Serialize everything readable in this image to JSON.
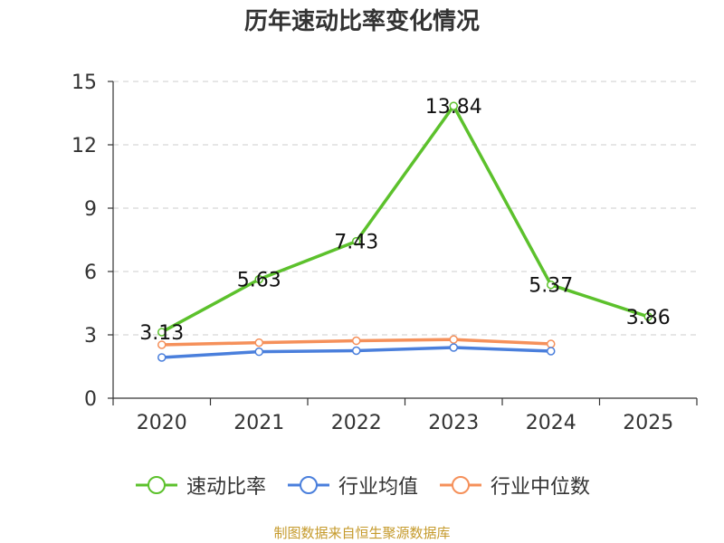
{
  "chart_data": {
    "type": "line",
    "title": "历年速动比率变化情况",
    "categories": [
      "2020",
      "2021",
      "2022",
      "2023",
      "2024",
      "2025"
    ],
    "ylim": [
      0,
      15
    ],
    "yticks": [
      0,
      3,
      6,
      9,
      12,
      15
    ],
    "grid": true,
    "legend_position": "bottom",
    "series": [
      {
        "name": "速动比率",
        "color": "#5cc12c",
        "values": [
          3.13,
          5.63,
          7.43,
          13.84,
          5.37,
          3.86
        ],
        "labels": [
          "3.13",
          "5.63",
          "7.43",
          "13.84",
          "5.37",
          "3.86"
        ]
      },
      {
        "name": "行业均值",
        "color": "#4a7fdc",
        "values": [
          1.93,
          2.2,
          2.25,
          2.4,
          2.23,
          null
        ]
      },
      {
        "name": "行业中位数",
        "color": "#f5905a",
        "values": [
          2.53,
          2.63,
          2.72,
          2.78,
          2.57,
          null
        ]
      }
    ]
  },
  "source": "制图数据来自恒生聚源数据库"
}
